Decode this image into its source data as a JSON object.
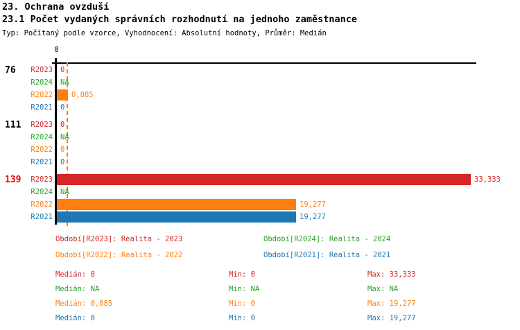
{
  "header": {
    "title1": "23. Ochrana ovzduší",
    "title2": "23.1 Počet vydaných správních rozhodnutí na jednoho zaměstnance",
    "subtitle": "Typ: Počítaný podle vzorce, Vyhodnocení: Absolutní hodnoty, Průměr: Medián"
  },
  "colors": {
    "R2023": "#d62728",
    "R2024": "#2ca02c",
    "R2022": "#ff7f0e",
    "R2021": "#1f77b4",
    "highlight_group_label": "#ee0000",
    "normal_group_label": "#000000",
    "axis": "#000000"
  },
  "chart_data": {
    "type": "bar",
    "orientation": "horizontal",
    "axis_tick_label": "0",
    "xlim": [
      0,
      33.8
    ],
    "grid": false,
    "median_reference_line": {
      "series": "R2022",
      "value": 0.885
    },
    "series_order": [
      "R2023",
      "R2024",
      "R2022",
      "R2021"
    ],
    "groups": [
      {
        "label": "76",
        "highlight": false,
        "bars": [
          {
            "series": "R2023",
            "value": 0,
            "label": "0"
          },
          {
            "series": "R2024",
            "value": null,
            "label": "NA"
          },
          {
            "series": "R2022",
            "value": 0.885,
            "label": "0,885"
          },
          {
            "series": "R2021",
            "value": 0,
            "label": "0"
          }
        ]
      },
      {
        "label": "111",
        "highlight": false,
        "bars": [
          {
            "series": "R2023",
            "value": 0,
            "label": "0"
          },
          {
            "series": "R2024",
            "value": null,
            "label": "NA"
          },
          {
            "series": "R2022",
            "value": 0,
            "label": "0"
          },
          {
            "series": "R2021",
            "value": 0,
            "label": "0"
          }
        ]
      },
      {
        "label": "139",
        "highlight": true,
        "bars": [
          {
            "series": "R2023",
            "value": 33.333,
            "label": "33,333"
          },
          {
            "series": "R2024",
            "value": null,
            "label": "NA"
          },
          {
            "series": "R2022",
            "value": 19.277,
            "label": "19,277"
          },
          {
            "series": "R2021",
            "value": 19.277,
            "label": "19,277"
          }
        ]
      }
    ]
  },
  "legend": {
    "items": [
      {
        "label": "Období[R2023]: Realita - 2023",
        "series": "R2023"
      },
      {
        "label": "Období[R2024]: Realita - 2024",
        "series": "R2024"
      },
      {
        "label": "Období[R2022]: Realita - 2022",
        "series": "R2022"
      },
      {
        "label": "Období[R2021]: Realita - 2021",
        "series": "R2021"
      }
    ]
  },
  "stats": {
    "rows": [
      {
        "series": "R2023",
        "med": "Medián: 0",
        "min": "Min: 0",
        "max": "Max: 33,333"
      },
      {
        "series": "R2024",
        "med": "Medián: NA",
        "min": "Min: NA",
        "max": "Max: NA"
      },
      {
        "series": "R2022",
        "med": "Medián: 0,885",
        "min": "Min: 0",
        "max": "Max: 19,277"
      },
      {
        "series": "R2021",
        "med": "Medián: 0",
        "min": "Min: 0",
        "max": "Max: 19,277"
      }
    ]
  }
}
